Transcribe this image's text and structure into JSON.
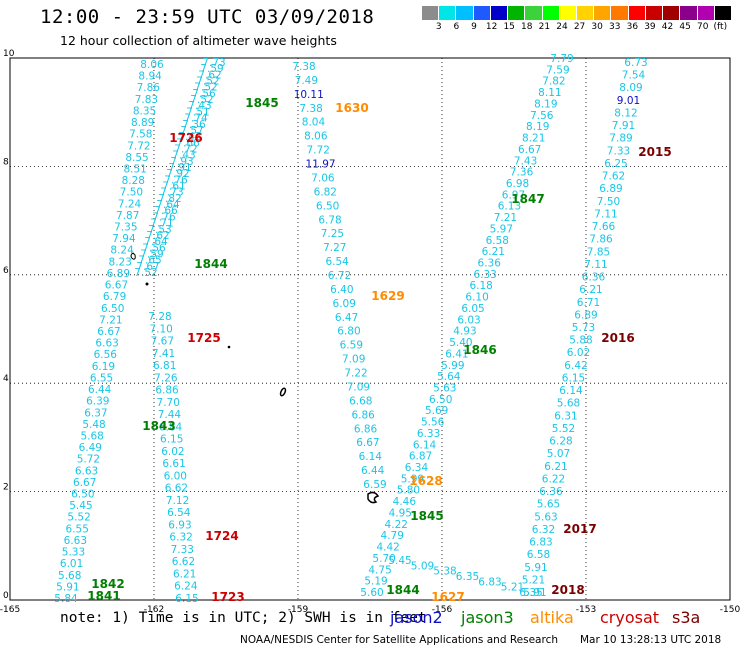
{
  "title": "12:00 - 23:59 UTC 03/09/2018",
  "subtitle": "12 hour collection of altimeter wave heights",
  "note": "note: 1) Time is in UTC; 2) SWH is in feet",
  "credit": "NOAA/NESDIS Center for Satellite Applications and Research",
  "timestamp": "Mar 10 13:28:13 UTC 2018",
  "colorbar": {
    "unit": "(ft)",
    "colors": [
      "#8c8c8c",
      "#00e5e5",
      "#00bfff",
      "#1e5aff",
      "#0000c8",
      "#00b400",
      "#3cd23c",
      "#00ff00",
      "#ffff00",
      "#ffd200",
      "#ffa500",
      "#ff7800",
      "#ff0000",
      "#c80000",
      "#a00000",
      "#8b008b",
      "#b000b0",
      "#000000"
    ],
    "labels": [
      "3",
      "6",
      "9",
      "12",
      "15",
      "18",
      "21",
      "24",
      "27",
      "30",
      "33",
      "36",
      "39",
      "42",
      "45",
      "70",
      "(ft)"
    ]
  },
  "legend": [
    {
      "name": "jason2",
      "color": "#1010c8"
    },
    {
      "name": "jason3",
      "color": "#008000"
    },
    {
      "name": "altika",
      "color": "#ff8c00"
    },
    {
      "name": "cryosat",
      "color": "#cc0000"
    },
    {
      "name": "s3a",
      "color": "#7a0000"
    }
  ],
  "map": {
    "lon_ticks": [
      "-165",
      "-162",
      "-159",
      "-156",
      "-153",
      "-150"
    ],
    "lat_ticks": [
      "0",
      "2",
      "4",
      "6",
      "8",
      "10"
    ],
    "lon_range": [
      -165,
      -150
    ],
    "lat_range": [
      0,
      10
    ],
    "grid": true
  },
  "tracks": [
    {
      "id": "t1",
      "color": "#19c6e6",
      "values": [
        "7.73",
        "7.59",
        "7.62",
        "7.52",
        "7.52",
        "7.56",
        "7.52",
        "7.43",
        "7.51",
        "7.74",
        "7.36",
        "7.57",
        "7.43",
        "7.66",
        "7.72",
        "7.43",
        "7.93",
        "7.91",
        "7.92",
        "7.76",
        "7.61",
        "7.73",
        "7.82",
        "7.64",
        "7.66",
        "7.76",
        "7.71",
        "7.53",
        "7.62",
        "7.64",
        "7.56",
        "7.59",
        "7.65",
        "7.67",
        "7.52"
      ]
    },
    {
      "id": "t2",
      "color": "#19c6e6",
      "values": [
        "8.06",
        "8.94",
        "7.86",
        "7.83",
        "8.35",
        "8.89",
        "7.58",
        "7.72",
        "8.55",
        "8.51",
        "8.28",
        "7.50",
        "7.24",
        "7.87",
        "7.35",
        "7.94",
        "8.24",
        "8.23",
        "6.89",
        "6.67",
        "6.79",
        "6.50",
        "7.21",
        "6.67",
        "6.63",
        "6.56",
        "6.19",
        "6.55",
        "6.44",
        "6.39",
        "6.37",
        "5.48",
        "5.68",
        "6.49",
        "5.72",
        "6.63",
        "6.67",
        "6.50",
        "5.45",
        "5.52",
        "6.55",
        "6.63",
        "5.33",
        "6.01",
        "5.68",
        "5.91",
        "5.84"
      ]
    },
    {
      "id": "t3",
      "color": "#19c6e6",
      "values": [
        "7.28",
        "7.10",
        "7.67",
        "7.41",
        "6.81",
        "7.26",
        "6.86",
        "7.70",
        "7.44",
        "6.84",
        "6.15",
        "6.02",
        "6.61",
        "6.00",
        "6.62",
        "7.12",
        "6.54",
        "6.93",
        "6.32",
        "7.33",
        "6.62",
        "6.21",
        "6.24",
        "6.15"
      ]
    },
    {
      "id": "t4",
      "color": "#19c6e6",
      "values": [
        "7.38",
        "7.49",
        "10.11",
        "7.38",
        "8.04",
        "8.06",
        "7.72",
        "11.97",
        "7.06",
        "6.82",
        "6.50",
        "6.78",
        "7.25",
        "7.27",
        "6.54",
        "6.72",
        "6.40",
        "6.09",
        "6.47",
        "6.80",
        "6.59",
        "7.09",
        "7.22",
        "7.09",
        "6.68",
        "6.86",
        "6.86",
        "6.67",
        "6.14",
        "6.44",
        "6.59"
      ]
    },
    {
      "id": "t5",
      "color": "#19c6e6",
      "values": [
        "7.79",
        "7.59",
        "7.82",
        "8.11",
        "8.19",
        "7.56",
        "8.19",
        "8.21",
        "6.67",
        "7.43",
        "7.36",
        "6.98",
        "6.97",
        "6.13",
        "7.21",
        "5.97",
        "6.58",
        "6.21",
        "6.36",
        "6.33",
        "6.18",
        "6.10",
        "6.05",
        "6.03",
        "4.93",
        "5.40",
        "6.41",
        "5.99",
        "5.64",
        "5.63",
        "6.50",
        "5.69",
        "5.56",
        "6.33",
        "6.14",
        "6.87",
        "6.34",
        "5.99",
        "5.80",
        "4.46",
        "4.95",
        "4.22",
        "4.79",
        "4.42",
        "5.70",
        "4.75",
        "5.19",
        "5.60"
      ]
    },
    {
      "id": "t6",
      "color": "#19c6e6",
      "values": [
        "5.45",
        "5.09",
        "5.38",
        "6.35",
        "6.83",
        "5.21",
        "5.91"
      ]
    },
    {
      "id": "t7",
      "color": "#19c6e6",
      "values": [
        "6.73",
        "7.54",
        "8.09",
        "9.01",
        "8.12",
        "7.91",
        "7.89",
        "7.33",
        "6.25",
        "7.62",
        "6.89",
        "7.50",
        "7.11",
        "7.66",
        "7.86",
        "7.85",
        "7.11",
        "6.36",
        "6.21",
        "6.71",
        "6.89",
        "5.73",
        "5.88",
        "6.02",
        "6.42",
        "6.15",
        "6.14",
        "5.68",
        "6.31",
        "5.52",
        "6.28",
        "5.07",
        "6.21",
        "6.22",
        "6.36",
        "5.65",
        "5.63",
        "6.32",
        "6.83",
        "6.58",
        "5.91",
        "5.21",
        "6.35"
      ]
    }
  ],
  "pass_labels": [
    {
      "text": "1845",
      "color": "#008000"
    },
    {
      "text": "1630",
      "color": "#ff8c00"
    },
    {
      "text": "1726",
      "color": "#cc0000"
    },
    {
      "text": "2015",
      "color": "#7a0000"
    },
    {
      "text": "1847",
      "color": "#008000"
    },
    {
      "text": "1844",
      "color": "#008000"
    },
    {
      "text": "1629",
      "color": "#ff8c00"
    },
    {
      "text": "1725",
      "color": "#cc0000"
    },
    {
      "text": "1846",
      "color": "#008000"
    },
    {
      "text": "2016",
      "color": "#7a0000"
    },
    {
      "text": "1843",
      "color": "#008000"
    },
    {
      "text": "1628",
      "color": "#ff8c00"
    },
    {
      "text": "1845",
      "color": "#008000"
    },
    {
      "text": "1724",
      "color": "#cc0000"
    },
    {
      "text": "2017",
      "color": "#7a0000"
    },
    {
      "text": "1842",
      "color": "#008000"
    },
    {
      "text": "1841",
      "color": "#008000"
    },
    {
      "text": "1844",
      "color": "#008000"
    },
    {
      "text": "1627",
      "color": "#ff8c00"
    },
    {
      "text": "1723",
      "color": "#cc0000"
    },
    {
      "text": "2018",
      "color": "#7a0000"
    }
  ]
}
